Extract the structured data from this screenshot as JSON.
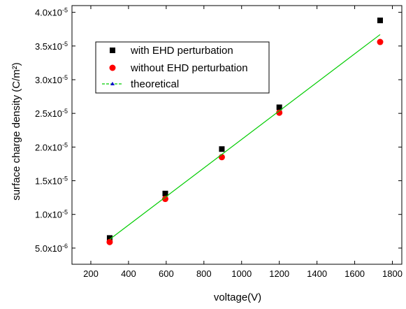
{
  "chart_data": {
    "type": "scatter",
    "title": "",
    "xlabel": "voltage(V)",
    "ylabel": "surface charge density (C/m²)",
    "xlim": [
      100,
      1850
    ],
    "ylim": [
      2.6e-06,
      4.1e-05
    ],
    "x_ticks": [
      200,
      400,
      600,
      800,
      1000,
      1200,
      1400,
      1600,
      1800
    ],
    "y_ticks": [
      {
        "value": 5e-06,
        "mant": "5.0x10",
        "exp": "-6"
      },
      {
        "value": 1e-05,
        "mant": "1.0x10",
        "exp": "-5"
      },
      {
        "value": 1.5e-05,
        "mant": "1.5x10",
        "exp": "-5"
      },
      {
        "value": 2e-05,
        "mant": "2.0x10",
        "exp": "-5"
      },
      {
        "value": 2.5e-05,
        "mant": "2.5x10",
        "exp": "-5"
      },
      {
        "value": 3e-05,
        "mant": "3.0x10",
        "exp": "-5"
      },
      {
        "value": 3.5e-05,
        "mant": "3.5x10",
        "exp": "-5"
      },
      {
        "value": 4e-05,
        "mant": "4.0x10",
        "exp": "-5"
      }
    ],
    "grid": false,
    "legend_position": "top-left",
    "series": [
      {
        "name": "with EHD perturbation",
        "marker": "square",
        "color": "#000000",
        "x": [
          300,
          595,
          895,
          1200,
          1735
        ],
        "y": [
          6.5e-06,
          1.31e-05,
          1.97e-05,
          2.59e-05,
          3.88e-05
        ]
      },
      {
        "name": "without EHD perturbation",
        "marker": "circle",
        "color": "#ff0000",
        "x": [
          300,
          595,
          895,
          1200,
          1735
        ],
        "y": [
          5.9e-06,
          1.23e-05,
          1.85e-05,
          2.51e-05,
          3.56e-05
        ]
      },
      {
        "name": "theoretical",
        "marker": "line",
        "color": "#00cc00",
        "legend_marker_color": "#0000cc",
        "x": [
          300,
          1735
        ],
        "y": [
          6.3e-06,
          3.67e-05
        ]
      }
    ]
  }
}
